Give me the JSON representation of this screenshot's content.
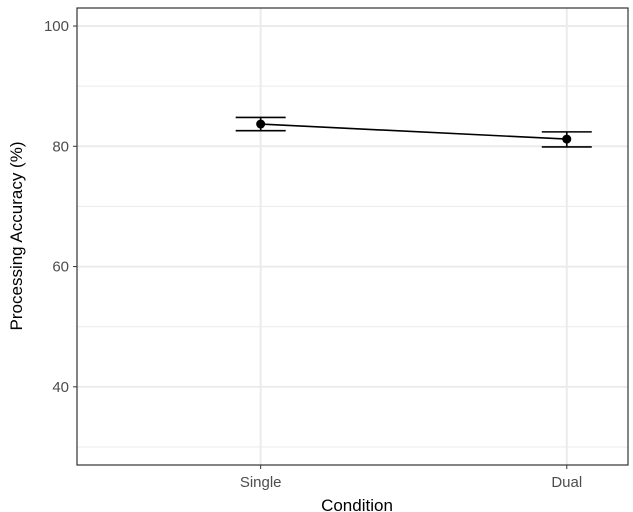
{
  "chart_data": {
    "type": "line",
    "title": "",
    "xlabel": "Condition",
    "ylabel": "Processing Accuracy (%)",
    "categories": [
      "Single",
      "Dual"
    ],
    "ylim": [
      27,
      103
    ],
    "y_ticks": [
      40,
      60,
      80,
      100
    ],
    "y_minor_ticks": [
      30,
      50,
      70,
      90
    ],
    "grid": true,
    "legend": "none",
    "series": [
      {
        "values": [
          83.7,
          81.2
        ],
        "error_low": [
          82.6,
          79.9
        ],
        "error_high": [
          84.8,
          82.4
        ]
      }
    ],
    "colors": {
      "line": "#000000",
      "grid": "#ebebeb",
      "panel_border": "#333333"
    }
  }
}
